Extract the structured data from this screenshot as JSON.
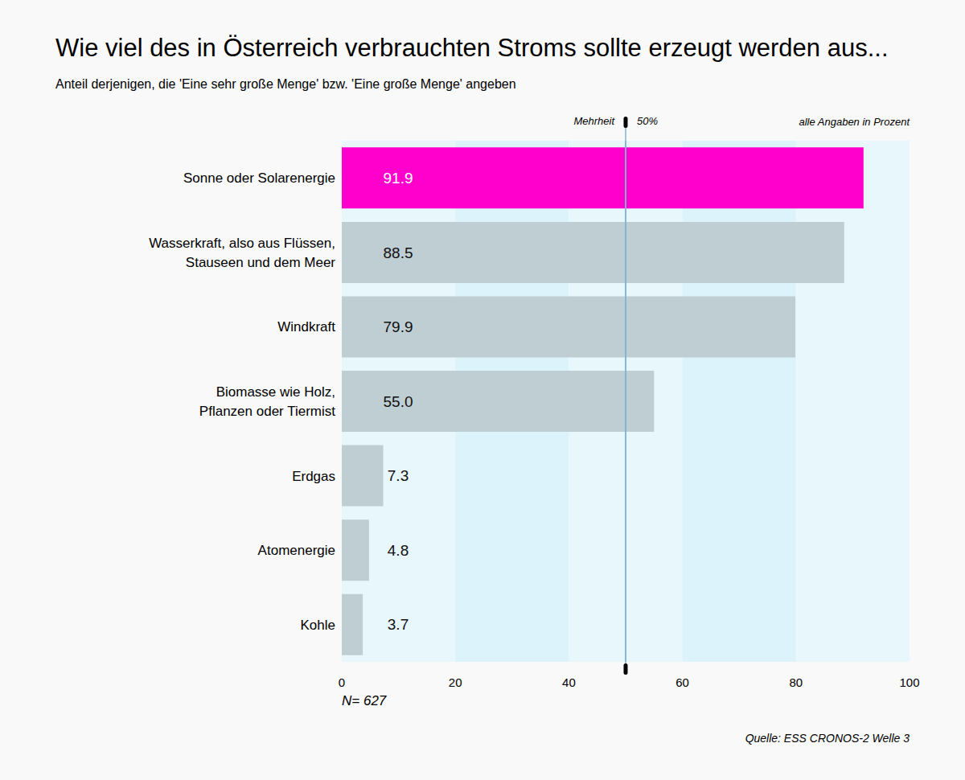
{
  "chart_data": {
    "type": "bar",
    "orientation": "horizontal",
    "title": "Wie viel des in Österreich verbrauchten Stroms sollte erzeugt werden aus...",
    "subtitle": "Anteil derjenigen, die 'Eine sehr große Menge' bzw. 'Eine große Menge' angeben",
    "categories": [
      "Sonne oder Solarenergie",
      "Wasserkraft, also aus Flüssen,\nStauseen und dem Meer",
      "Windkraft",
      "Biomasse wie Holz,\nPflanzen oder Tiermist",
      "Erdgas",
      "Atomenergie",
      "Kohle"
    ],
    "values": [
      91.9,
      88.5,
      79.9,
      55.0,
      7.3,
      4.8,
      3.7
    ],
    "value_labels": [
      "91.9",
      "88.5",
      "79.9",
      "55.0",
      "7.3",
      "4.8",
      "3.7"
    ],
    "colors": [
      "#ff00cc",
      "#bfced3",
      "#bfced3",
      "#bfced3",
      "#bfced3",
      "#bfced3",
      "#bfced3"
    ],
    "data_labels": true,
    "xlim": [
      0,
      100
    ],
    "xticks": [
      0,
      20,
      40,
      60,
      80,
      100
    ],
    "grid": false,
    "reference_line": {
      "value": 50,
      "label": "Mehrheit",
      "value_label": "50%"
    },
    "annotations": [
      "alle Angaben in Prozent",
      "N= 627",
      "Quelle: ESS CRONOS-2 Welle 3"
    ]
  }
}
